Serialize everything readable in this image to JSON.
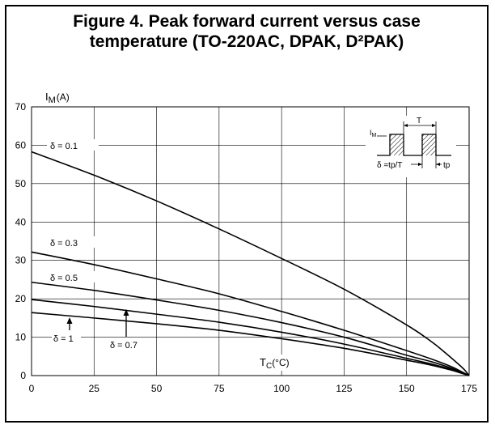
{
  "figure": {
    "title_line1": "Figure 4. Peak forward current versus case",
    "title_line2": "temperature (TO-220AC, DPAK, D²PAK)"
  },
  "chart_data": {
    "type": "line",
    "ylabel_main": "I",
    "ylabel_sub": "M",
    "ylabel_unit": "(A)",
    "xlabel_main": "T",
    "xlabel_sub": "C",
    "xlabel_unit": "(°C)",
    "xlim": [
      0,
      175
    ],
    "ylim": [
      0,
      70
    ],
    "xticks": [
      0,
      25,
      50,
      75,
      100,
      125,
      150,
      175
    ],
    "yticks": [
      0,
      10,
      20,
      30,
      40,
      50,
      60,
      70
    ],
    "grid": true,
    "series": [
      {
        "name": "δ = 0.1",
        "x": [
          0,
          25,
          50,
          75,
          100,
          125,
          150,
          160,
          165,
          170,
          173,
          175
        ],
        "y": [
          58.3,
          52.2,
          45.5,
          38.2,
          30.5,
          22.5,
          13.2,
          8.8,
          6.2,
          3.4,
          1.6,
          0
        ]
      },
      {
        "name": "δ = 0.3",
        "x": [
          0,
          25,
          50,
          75,
          100,
          125,
          150,
          160,
          168,
          172,
          175
        ],
        "y": [
          32.2,
          28.9,
          25.2,
          21.3,
          16.7,
          11.8,
          6.5,
          4.3,
          2.3,
          1.0,
          0
        ]
      },
      {
        "name": "δ = 0.5",
        "x": [
          0,
          25,
          50,
          75,
          100,
          125,
          150,
          160,
          168,
          172,
          175
        ],
        "y": [
          24.3,
          22.2,
          19.7,
          17.0,
          13.8,
          10.0,
          5.3,
          3.6,
          1.9,
          0.8,
          0
        ]
      },
      {
        "name": "δ = 0.7",
        "x": [
          0,
          25,
          50,
          75,
          100,
          125,
          150,
          160,
          168,
          172,
          175
        ],
        "y": [
          19.8,
          18.0,
          16.0,
          13.9,
          11.3,
          8.2,
          4.5,
          3.0,
          1.6,
          0.7,
          0
        ]
      },
      {
        "name": "δ = 1",
        "x": [
          0,
          25,
          50,
          75,
          100,
          125,
          150,
          160,
          168,
          172,
          175
        ],
        "y": [
          16.4,
          15.0,
          13.5,
          11.8,
          9.6,
          7.1,
          4.0,
          2.7,
          1.4,
          0.6,
          0
        ]
      }
    ],
    "labels": {
      "d01": "δ = 0.1",
      "d03": "δ = 0.3",
      "d05": "δ = 0.5",
      "d07": "δ = 0.7",
      "d1": "δ = 1"
    },
    "inset": {
      "im_main": "I",
      "im_sub": "M",
      "period_label": "T",
      "duty_label": "δ =tp/T",
      "tp_label": "tp"
    }
  }
}
